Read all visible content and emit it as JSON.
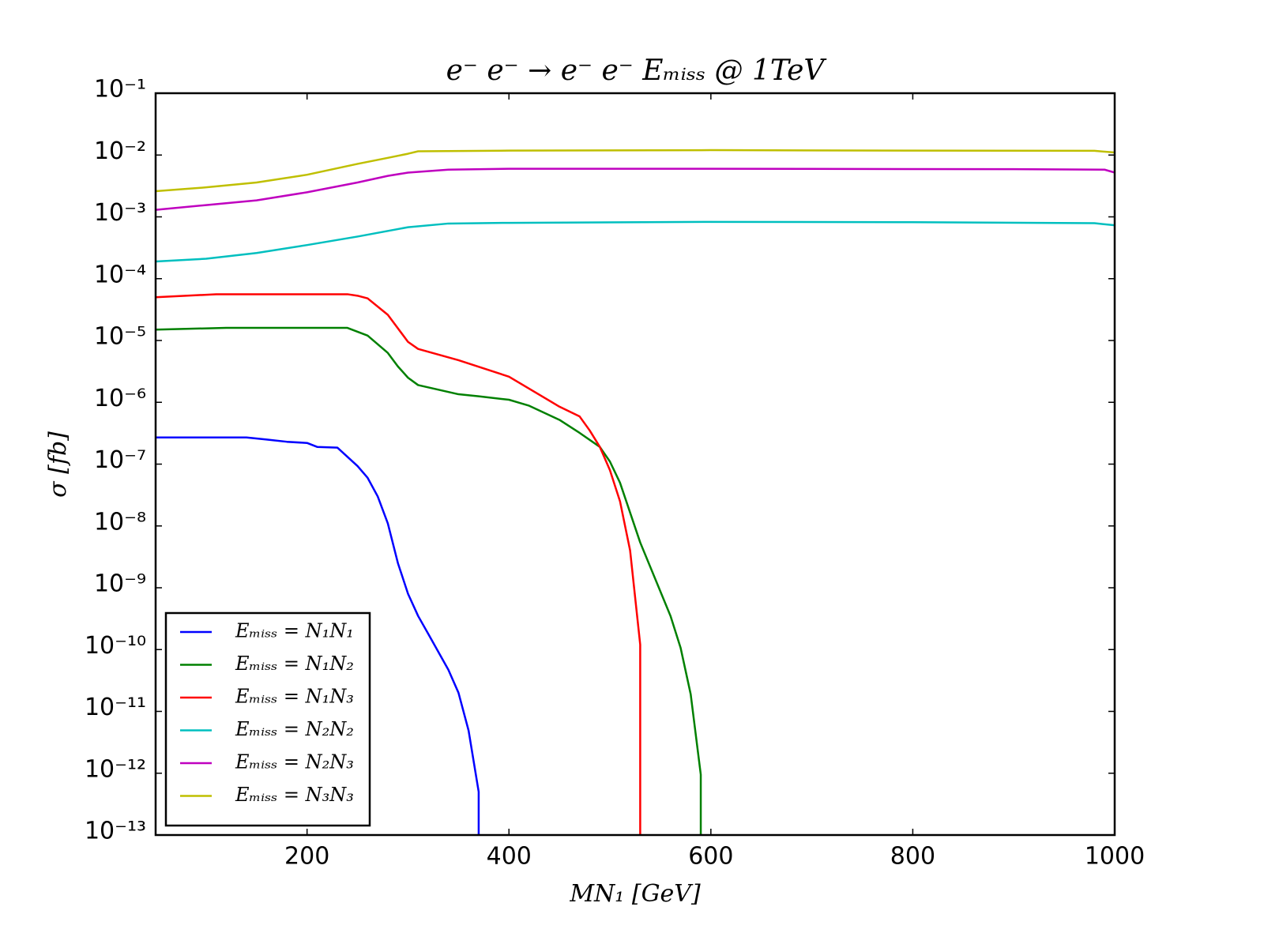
{
  "chart_data": {
    "type": "line",
    "title": "e⁻ e⁻ → e⁻ e⁻ Eₘᵢₛₛ @ 1TeV",
    "x_label": "MN₁ [GeV]",
    "y_label": "σ [fb]",
    "xlim": [
      50,
      1000
    ],
    "xticks": [
      200,
      400,
      600,
      800,
      1000
    ],
    "ylim": [
      1e-13,
      0.1
    ],
    "yscale": "log",
    "yticks": [
      {
        "value": 1e-13,
        "label": "10⁻¹³"
      },
      {
        "value": 1e-12,
        "label": "10⁻¹²"
      },
      {
        "value": 1e-11,
        "label": "10⁻¹¹"
      },
      {
        "value": 1e-10,
        "label": "10⁻¹⁰"
      },
      {
        "value": 1e-09,
        "label": "10⁻⁹"
      },
      {
        "value": 1e-08,
        "label": "10⁻⁸"
      },
      {
        "value": 1e-07,
        "label": "10⁻⁷"
      },
      {
        "value": 1e-06,
        "label": "10⁻⁶"
      },
      {
        "value": 1e-05,
        "label": "10⁻⁵"
      },
      {
        "value": 0.0001,
        "label": "10⁻⁴"
      },
      {
        "value": 0.001,
        "label": "10⁻³"
      },
      {
        "value": 0.01,
        "label": "10⁻²"
      },
      {
        "value": 0.1,
        "label": "10⁻¹"
      }
    ],
    "grid": false,
    "legend_position": "lower left",
    "series": [
      {
        "name": "Eₘᵢₛₛ = N₁N₁",
        "color": "#0000ff",
        "x": [
          50,
          140,
          160,
          180,
          200,
          210,
          230,
          250,
          260,
          270,
          280,
          290,
          300,
          310,
          320,
          340,
          350,
          360,
          370,
          370
        ],
        "values": [
          2.7e-07,
          2.7e-07,
          2.5e-07,
          2.3e-07,
          2.2e-07,
          1.9e-07,
          1.85e-07,
          9.3e-08,
          6e-08,
          3e-08,
          1.1e-08,
          2.5e-09,
          8e-10,
          3.5e-10,
          1.8e-10,
          4.7e-11,
          2e-11,
          4.9e-12,
          5e-13,
          1e-13
        ]
      },
      {
        "name": "Eₘᵢₛₛ = N₁N₂",
        "color": "#008000",
        "x": [
          50,
          120,
          240,
          260,
          280,
          290,
          300,
          310,
          350,
          370,
          400,
          420,
          450,
          470,
          490,
          500,
          510,
          530,
          560,
          570,
          580,
          590,
          590
        ],
        "values": [
          1.5e-05,
          1.6e-05,
          1.6e-05,
          1.2e-05,
          6.3e-06,
          3.8e-06,
          2.5e-06,
          1.9e-06,
          1.35e-06,
          1.25e-06,
          1.1e-06,
          8.8e-07,
          5.2e-07,
          3.2e-07,
          1.9e-07,
          1.1e-07,
          5e-08,
          5.4e-09,
          3.5e-10,
          1.07e-10,
          1.9e-11,
          9.5e-13,
          1e-13
        ]
      },
      {
        "name": "Eₘᵢₛₛ = N₁N₃",
        "color": "#ff0000",
        "x": [
          50,
          110,
          240,
          250,
          260,
          280,
          300,
          310,
          350,
          400,
          450,
          470,
          480,
          490,
          500,
          510,
          520,
          530,
          530
        ],
        "values": [
          5e-05,
          5.6e-05,
          5.6e-05,
          5.3e-05,
          4.8e-05,
          2.6e-05,
          9.5e-06,
          7.3e-06,
          4.8e-06,
          2.6e-06,
          8.5e-07,
          5.9e-07,
          3.5e-07,
          1.9e-07,
          8e-08,
          2.5e-08,
          4e-09,
          1.2e-10,
          1e-13
        ]
      },
      {
        "name": "Eₘᵢₛₛ = N₂N₂",
        "color": "#00bfbf",
        "x": [
          50,
          100,
          150,
          200,
          250,
          300,
          340,
          400,
          600,
          800,
          980,
          1000
        ],
        "values": [
          0.00019,
          0.00021,
          0.00026,
          0.00035,
          0.00048,
          0.00068,
          0.00078,
          0.0008,
          0.00083,
          0.00082,
          0.00079,
          0.00073
        ]
      },
      {
        "name": "Eₘᵢₛₛ = N₂N₃",
        "color": "#bf00bf",
        "x": [
          50,
          100,
          150,
          200,
          250,
          280,
          300,
          340,
          400,
          600,
          900,
          990,
          1000
        ],
        "values": [
          0.0013,
          0.00155,
          0.00185,
          0.0025,
          0.0036,
          0.0046,
          0.0052,
          0.0058,
          0.006,
          0.006,
          0.0059,
          0.0058,
          0.0052
        ]
      },
      {
        "name": "Eₘᵢₛₛ = N₃N₃",
        "color": "#bfbf00",
        "x": [
          50,
          100,
          150,
          200,
          250,
          280,
          300,
          310,
          400,
          600,
          800,
          980,
          1000
        ],
        "values": [
          0.0026,
          0.003,
          0.0036,
          0.0048,
          0.0072,
          0.009,
          0.0105,
          0.0115,
          0.0118,
          0.012,
          0.0118,
          0.0117,
          0.011
        ]
      }
    ]
  }
}
